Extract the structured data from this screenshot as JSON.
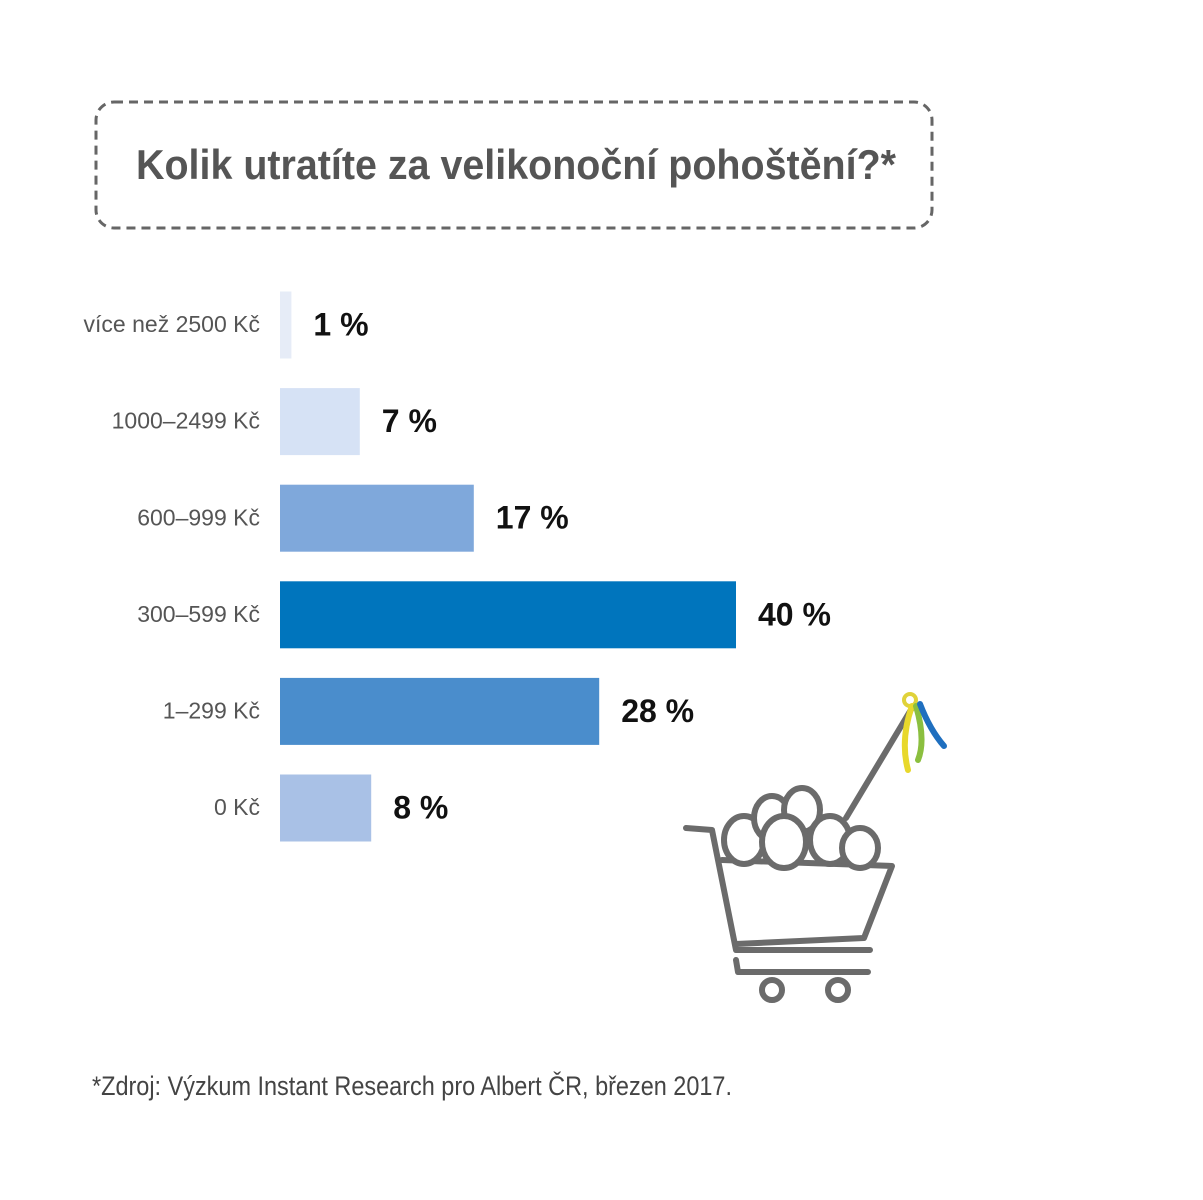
{
  "chart_data": {
    "type": "bar",
    "orientation": "horizontal",
    "title": "Kolik utratíte za velikonoční pohoštění?*",
    "categories": [
      "více než 2500 Kč",
      "1000–2499 Kč",
      "600–999 Kč",
      "300–599 Kč",
      "1–299 Kč",
      "0 Kč"
    ],
    "values": [
      1,
      7,
      17,
      40,
      28,
      8
    ],
    "value_labels": [
      "1 %",
      "7 %",
      "17 %",
      "40 %",
      "28 %",
      "8 %"
    ],
    "colors": [
      "#e6ecf7",
      "#d6e2f5",
      "#7fa8db",
      "#0075bd",
      "#4a8dcc",
      "#a9c1e6"
    ],
    "source": "*Zdroj: Výzkum Instant Research pro Albert ČR, březen 2017."
  }
}
